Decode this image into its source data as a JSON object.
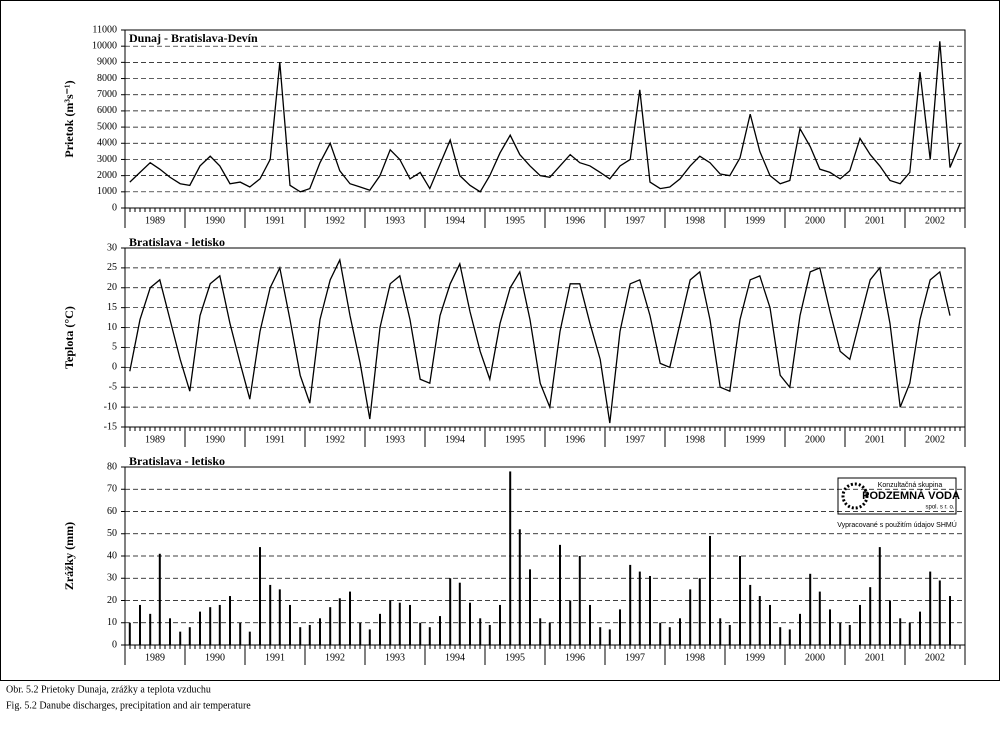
{
  "chart_data": [
    {
      "type": "line",
      "title": "Dunaj - Bratislava-Devín",
      "y_label": "Prietok (m³s⁻¹)",
      "categories": [
        "1989",
        "1990",
        "1991",
        "1992",
        "1993",
        "1994",
        "1995",
        "1996",
        "1997",
        "1998",
        "1999",
        "2000",
        "2001",
        "2002"
      ],
      "xlim": [
        1989,
        2003
      ],
      "x": [
        1989.08,
        1989.25,
        1989.42,
        1989.58,
        1989.75,
        1989.92,
        1990.08,
        1990.25,
        1990.42,
        1990.58,
        1990.75,
        1990.92,
        1991.08,
        1991.25,
        1991.42,
        1991.58,
        1991.75,
        1991.92,
        1992.08,
        1992.25,
        1992.42,
        1992.58,
        1992.75,
        1992.92,
        1993.08,
        1993.25,
        1993.42,
        1993.58,
        1993.75,
        1993.92,
        1994.08,
        1994.25,
        1994.42,
        1994.58,
        1994.75,
        1994.92,
        1995.08,
        1995.25,
        1995.42,
        1995.58,
        1995.75,
        1995.92,
        1996.08,
        1996.25,
        1996.42,
        1996.58,
        1996.75,
        1996.92,
        1997.08,
        1997.25,
        1997.42,
        1997.58,
        1997.75,
        1997.92,
        1998.08,
        1998.25,
        1998.42,
        1998.58,
        1998.75,
        1998.92,
        1999.08,
        1999.25,
        1999.42,
        1999.58,
        1999.75,
        1999.92,
        2000.08,
        2000.25,
        2000.42,
        2000.58,
        2000.75,
        2000.92,
        2001.08,
        2001.25,
        2001.42,
        2001.58,
        2001.75,
        2001.92,
        2002.08,
        2002.25,
        2002.42,
        2002.58,
        2002.75,
        2002.92
      ],
      "values": [
        1600,
        2200,
        2800,
        2400,
        1900,
        1500,
        1400,
        2600,
        3200,
        2600,
        1500,
        1600,
        1300,
        1800,
        3000,
        9000,
        1400,
        1000,
        1200,
        2800,
        4000,
        2300,
        1500,
        1300,
        1100,
        2000,
        3600,
        3000,
        1800,
        2200,
        1200,
        2700,
        4200,
        2000,
        1400,
        1000,
        2000,
        3400,
        4500,
        3300,
        2600,
        2000,
        1900,
        2600,
        3300,
        2800,
        2600,
        2200,
        1800,
        2600,
        3000,
        7300,
        1600,
        1200,
        1300,
        1800,
        2600,
        3200,
        2800,
        2100,
        2000,
        3100,
        5800,
        3500,
        2000,
        1500,
        1700,
        4900,
        3800,
        2400,
        2200,
        1800,
        2300,
        4300,
        3300,
        2600,
        1700,
        1500,
        2200,
        8400,
        3000,
        10300,
        2500,
        4000
      ],
      "color": "#000000",
      "ylim": [
        0,
        11000
      ],
      "yticks": [
        0,
        1000,
        2000,
        3000,
        4000,
        5000,
        6000,
        7000,
        8000,
        9000,
        10000,
        11000
      ],
      "grid": true
    },
    {
      "type": "line",
      "title": "Bratislava - letisko",
      "y_label": "Teplota (°C)",
      "categories": [
        "1989",
        "1990",
        "1991",
        "1992",
        "1993",
        "1994",
        "1995",
        "1996",
        "1997",
        "1998",
        "1999",
        "2000",
        "2001",
        "2002"
      ],
      "xlim": [
        1989,
        2003
      ],
      "x": [
        1989.08,
        1989.25,
        1989.42,
        1989.58,
        1989.75,
        1989.92,
        1990.08,
        1990.25,
        1990.42,
        1990.58,
        1990.75,
        1990.92,
        1991.08,
        1991.25,
        1991.42,
        1991.58,
        1991.75,
        1991.92,
        1992.08,
        1992.25,
        1992.42,
        1992.58,
        1992.75,
        1992.92,
        1993.08,
        1993.25,
        1993.42,
        1993.58,
        1993.75,
        1993.92,
        1994.08,
        1994.25,
        1994.42,
        1994.58,
        1994.75,
        1994.92,
        1995.08,
        1995.25,
        1995.42,
        1995.58,
        1995.75,
        1995.92,
        1996.08,
        1996.25,
        1996.42,
        1996.58,
        1996.75,
        1996.92,
        1997.08,
        1997.25,
        1997.42,
        1997.58,
        1997.75,
        1997.92,
        1998.08,
        1998.25,
        1998.42,
        1998.58,
        1998.75,
        1998.92,
        1999.08,
        1999.25,
        1999.42,
        1999.58,
        1999.75,
        1999.92,
        2000.08,
        2000.25,
        2000.42,
        2000.58,
        2000.75,
        2000.92,
        2001.08,
        2001.25,
        2001.42,
        2001.58,
        2001.75,
        2001.92,
        2002.08,
        2002.25,
        2002.42,
        2002.58,
        2002.75,
        2002.92
      ],
      "values": [
        -1,
        12,
        20,
        22,
        12,
        2,
        -6,
        13,
        21,
        23,
        11,
        1,
        -8,
        9,
        20,
        25,
        12,
        -2,
        -9,
        12,
        22,
        27,
        13,
        1,
        -13,
        10,
        21,
        23,
        12,
        -3,
        -4,
        13,
        21,
        26,
        14,
        4,
        -3,
        11,
        20,
        24,
        12,
        -4,
        -10,
        9,
        21,
        21,
        11,
        2,
        -14,
        9,
        21,
        22,
        13,
        1,
        0,
        11,
        22,
        24,
        12,
        -5,
        -6,
        12,
        22,
        23,
        15,
        -2,
        -5,
        13,
        24,
        25,
        14,
        4,
        2,
        12,
        22,
        25,
        11,
        -10,
        -4,
        12,
        22,
        24,
        13,
        null
      ],
      "color": "#000000",
      "ylim": [
        -15,
        30
      ],
      "yticks": [
        -15,
        -10,
        -5,
        0,
        5,
        10,
        15,
        20,
        25,
        30
      ],
      "grid": true
    },
    {
      "type": "bar",
      "title": "Bratislava - letisko",
      "y_label": "Zrážky (mm)",
      "categories": [
        "1989",
        "1990",
        "1991",
        "1992",
        "1993",
        "1994",
        "1995",
        "1996",
        "1997",
        "1998",
        "1999",
        "2000",
        "2001",
        "2002"
      ],
      "xlim": [
        1989,
        2003
      ],
      "x": [
        1989.08,
        1989.25,
        1989.42,
        1989.58,
        1989.75,
        1989.92,
        1990.08,
        1990.25,
        1990.42,
        1990.58,
        1990.75,
        1990.92,
        1991.08,
        1991.25,
        1991.42,
        1991.58,
        1991.75,
        1991.92,
        1992.08,
        1992.25,
        1992.42,
        1992.58,
        1992.75,
        1992.92,
        1993.08,
        1993.25,
        1993.42,
        1993.58,
        1993.75,
        1993.92,
        1994.08,
        1994.25,
        1994.42,
        1994.58,
        1994.75,
        1994.92,
        1995.08,
        1995.25,
        1995.42,
        1995.58,
        1995.75,
        1995.92,
        1996.08,
        1996.25,
        1996.42,
        1996.58,
        1996.75,
        1996.92,
        1997.08,
        1997.25,
        1997.42,
        1997.58,
        1997.75,
        1997.92,
        1998.08,
        1998.25,
        1998.42,
        1998.58,
        1998.75,
        1998.92,
        1999.08,
        1999.25,
        1999.42,
        1999.58,
        1999.75,
        1999.92,
        2000.08,
        2000.25,
        2000.42,
        2000.58,
        2000.75,
        2000.92,
        2001.08,
        2001.25,
        2001.42,
        2001.58,
        2001.75,
        2001.92,
        2002.08,
        2002.25,
        2002.42,
        2002.58,
        2002.75,
        2002.92
      ],
      "values": [
        10,
        18,
        14,
        41,
        12,
        6,
        8,
        15,
        17,
        18,
        22,
        10,
        6,
        44,
        27,
        25,
        18,
        8,
        9,
        12,
        17,
        21,
        24,
        10,
        7,
        14,
        20,
        19,
        18,
        10,
        8,
        13,
        30,
        28,
        19,
        12,
        9,
        18,
        78,
        52,
        34,
        12,
        10,
        45,
        20,
        40,
        18,
        8,
        7,
        16,
        36,
        33,
        31,
        10,
        8,
        12,
        25,
        30,
        49,
        12,
        9,
        40,
        27,
        22,
        18,
        8,
        7,
        14,
        32,
        24,
        16,
        10,
        9,
        18,
        26,
        44,
        20,
        12,
        10,
        15,
        33,
        29,
        22,
        null
      ],
      "color": "#000000",
      "ylim": [
        0,
        80
      ],
      "yticks": [
        0,
        10,
        20,
        30,
        40,
        50,
        60,
        70,
        80
      ],
      "grid": true
    }
  ],
  "logo": {
    "line1": "Konzultačná skupina",
    "line2": "PODZEMNÁ VODA",
    "line3": "spol. s r. o.",
    "note": "Vypracované s použitím údajov SHMÚ"
  },
  "caption": {
    "sk": "Obr. 5.2  Prietoky Dunaja, zrážky a teplota vzduchu",
    "en": "Fig. 5.2  Danube discharges, precipitation and air temperature"
  }
}
